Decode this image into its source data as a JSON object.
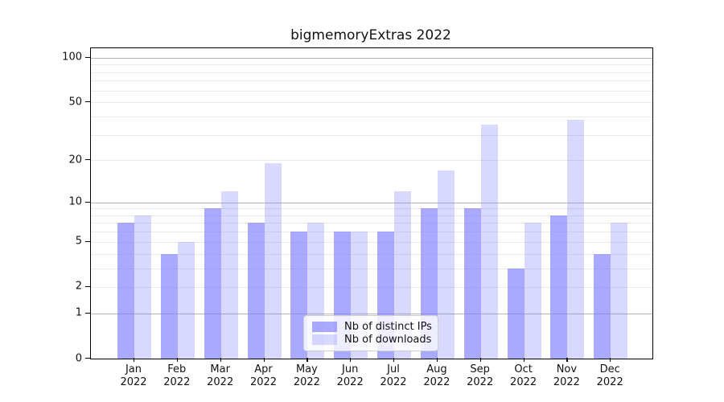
{
  "figure": {
    "background": "#ffffff",
    "title": "bigmemoryExtras 2022"
  },
  "chart_data": {
    "type": "bar",
    "title": "bigmemoryExtras 2022",
    "categories": [
      "Jan",
      "Feb",
      "Mar",
      "Apr",
      "May",
      "Jun",
      "Jul",
      "Aug",
      "Sep",
      "Oct",
      "Nov",
      "Dec"
    ],
    "category_year": "2022",
    "series": [
      {
        "name": "Nb of distinct IPs",
        "color": "rgba(128,128,255,0.68)",
        "values": [
          7,
          4,
          9,
          7,
          6,
          6,
          6,
          9,
          9,
          3,
          8,
          4
        ]
      },
      {
        "name": "Nb of downloads",
        "color": "rgba(128,128,255,0.30)",
        "values": [
          8,
          5,
          12,
          19,
          7,
          6,
          12,
          17,
          35,
          7,
          38,
          7
        ]
      }
    ],
    "xlabel": "",
    "ylabel": "",
    "y_axis": {
      "scale": "log1p",
      "range": [
        0,
        100
      ],
      "ticks": [
        0,
        1,
        2,
        5,
        10,
        20,
        50,
        100
      ],
      "major_gridlines": [
        1,
        10,
        100
      ],
      "minor_gridlines": [
        2,
        3,
        4,
        5,
        6,
        7,
        8,
        9,
        20,
        30,
        40,
        50,
        60,
        70,
        80,
        90
      ]
    },
    "grid": true,
    "legend_position": "lower center"
  },
  "colors": {
    "major_grid": "#b3b3b3",
    "minor_grid": "#e9e9e9",
    "spine": "#000000",
    "text": "#111111"
  }
}
